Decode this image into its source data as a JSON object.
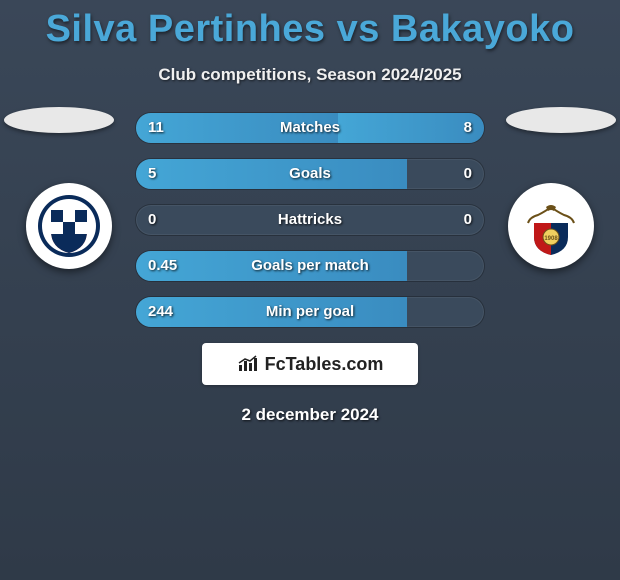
{
  "title": "Silva Pertinhes vs Bakayoko",
  "subtitle": "Club competitions, Season 2024/2025",
  "date": "2 december 2024",
  "brand": "FcTables.com",
  "colors": {
    "title": "#4aa8d8",
    "bar_fill": "#3d99cc",
    "bar_bg": "#3a4a5c",
    "page_bg_top": "#3a4758",
    "page_bg_bottom": "#2f3a48",
    "text": "#ffffff"
  },
  "teams": {
    "left": {
      "name": "Crotone",
      "badge_bg": "#ffffff"
    },
    "right": {
      "name": "Casertana",
      "badge_bg": "#ffffff"
    }
  },
  "stats": [
    {
      "label": "Matches",
      "left_val": "11",
      "right_val": "8",
      "left_pct": 58,
      "right_pct": 42
    },
    {
      "label": "Goals",
      "left_val": "5",
      "right_val": "0",
      "left_pct": 78,
      "right_pct": 0
    },
    {
      "label": "Hattricks",
      "left_val": "0",
      "right_val": "0",
      "left_pct": 0,
      "right_pct": 0
    },
    {
      "label": "Goals per match",
      "left_val": "0.45",
      "right_val": "",
      "left_pct": 78,
      "right_pct": 0
    },
    {
      "label": "Min per goal",
      "left_val": "244",
      "right_val": "",
      "left_pct": 78,
      "right_pct": 0
    }
  ]
}
